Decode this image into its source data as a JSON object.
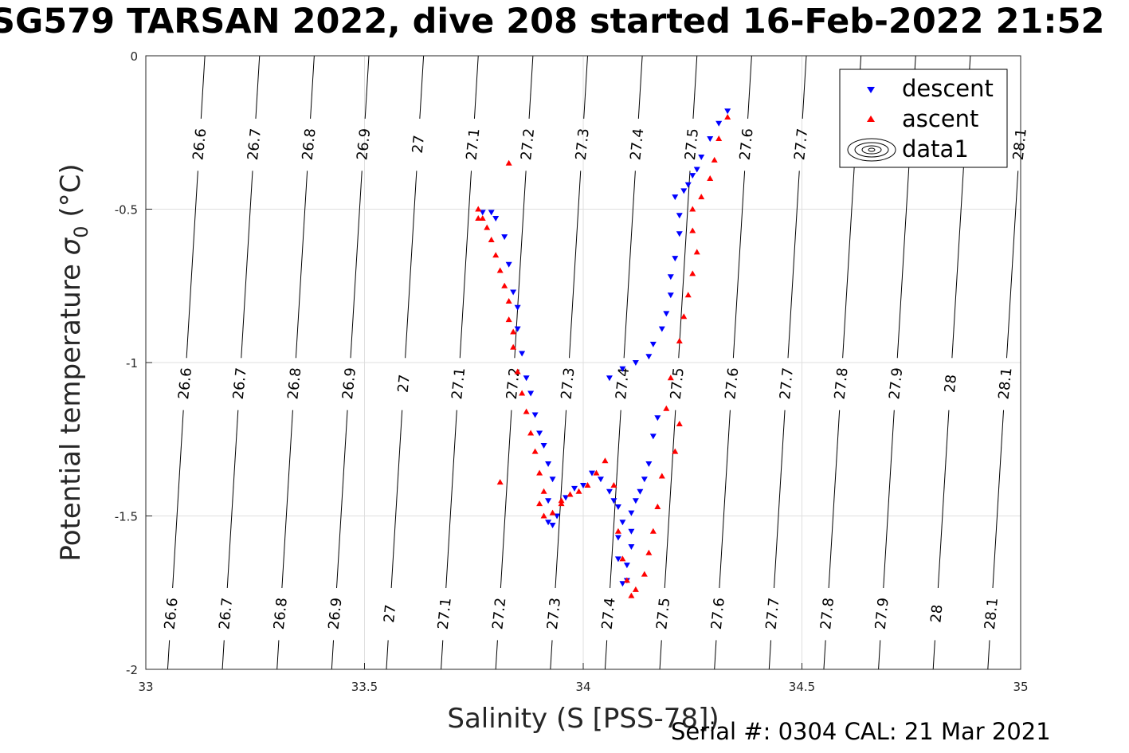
{
  "title": "SG579 TARSAN 2022, dive 208 started 16-Feb-2022 21:52",
  "footer": "Serial #: 0304  CAL: 21 Mar 2021",
  "chart_data": {
    "type": "scatter",
    "xlabel": "Salinity (S [PSS-78])",
    "ylabel_main": "Potential temperature ",
    "ylabel_sigma": "σ",
    "ylabel_sub": "0",
    "ylabel_unit": " (°C)",
    "xlim": [
      33,
      35
    ],
    "ylim": [
      -2,
      0
    ],
    "xticks": [
      "33",
      "33.5",
      "34",
      "34.5",
      "35"
    ],
    "yticks": [
      "0",
      "-0.5",
      "-1",
      "-1.5",
      "-2"
    ],
    "grid": true,
    "legend_position": "top-right",
    "legend": [
      "descent",
      "ascent",
      "data1"
    ],
    "colors": {
      "descent": "#0000ff",
      "ascent": "#ff0000",
      "contour": "#000000"
    },
    "density_contours": {
      "levels": [
        "26.6",
        "26.7",
        "26.8",
        "26.9",
        "27",
        "27.1",
        "27.2",
        "27.3",
        "27.4",
        "27.5",
        "27.6",
        "27.7",
        "27.8",
        "27.9",
        "28",
        "28.1"
      ],
      "s_at_top": [
        33.135,
        33.26,
        33.385,
        33.51,
        33.635,
        33.76,
        33.885,
        34.01,
        34.135,
        34.26,
        34.385,
        34.51,
        34.635,
        34.76,
        34.885,
        35.01
      ],
      "s_at_bottom": [
        33.05,
        33.175,
        33.3,
        33.425,
        33.55,
        33.675,
        33.8,
        33.925,
        34.05,
        34.175,
        34.3,
        34.425,
        34.55,
        34.675,
        34.8,
        34.925
      ],
      "label_rows": [
        {
          "y": -0.29,
          "levels": [
            "26.6",
            "26.7",
            "26.8",
            "26.9",
            "27",
            "27.1",
            "27.2",
            "27.3",
            "27.4",
            "27.5",
            "27.6",
            "27.7",
            "28.1"
          ]
        },
        {
          "y": -1.07,
          "levels": [
            "26.6",
            "26.7",
            "26.8",
            "26.9",
            "27",
            "27.1",
            "27.2",
            "27.3",
            "27.4",
            "27.5",
            "27.6",
            "27.7",
            "27.8",
            "27.9",
            "28",
            "28.1"
          ]
        },
        {
          "y": -1.82,
          "levels": [
            "26.6",
            "26.7",
            "26.8",
            "26.9",
            "27",
            "27.1",
            "27.2",
            "27.3",
            "27.4",
            "27.5",
            "27.6",
            "27.7",
            "27.8",
            "27.9",
            "28",
            "28.1"
          ]
        }
      ]
    },
    "series": [
      {
        "name": "descent",
        "marker": "triangle-down",
        "points": [
          [
            34.33,
            -0.18
          ],
          [
            34.31,
            -0.22
          ],
          [
            34.29,
            -0.27
          ],
          [
            34.27,
            -0.33
          ],
          [
            34.26,
            -0.37
          ],
          [
            34.25,
            -0.39
          ],
          [
            34.24,
            -0.42
          ],
          [
            34.23,
            -0.44
          ],
          [
            34.21,
            -0.46
          ],
          [
            34.22,
            -0.52
          ],
          [
            34.22,
            -0.58
          ],
          [
            34.21,
            -0.66
          ],
          [
            34.2,
            -0.72
          ],
          [
            34.2,
            -0.78
          ],
          [
            34.19,
            -0.84
          ],
          [
            34.18,
            -0.89
          ],
          [
            34.16,
            -0.94
          ],
          [
            34.15,
            -0.98
          ],
          [
            34.12,
            -1.0
          ],
          [
            34.09,
            -1.02
          ],
          [
            34.06,
            -1.05
          ],
          [
            34.17,
            -1.18
          ],
          [
            34.16,
            -1.24
          ],
          [
            34.15,
            -1.33
          ],
          [
            34.14,
            -1.38
          ],
          [
            34.13,
            -1.42
          ],
          [
            34.12,
            -1.45
          ],
          [
            34.11,
            -1.49
          ],
          [
            34.11,
            -1.55
          ],
          [
            34.11,
            -1.6
          ],
          [
            34.1,
            -1.66
          ],
          [
            34.1,
            -1.71
          ],
          [
            34.09,
            -1.72
          ],
          [
            34.08,
            -1.64
          ],
          [
            34.08,
            -1.57
          ],
          [
            34.09,
            -1.52
          ],
          [
            34.08,
            -1.47
          ],
          [
            34.07,
            -1.45
          ],
          [
            34.06,
            -1.42
          ],
          [
            34.04,
            -1.38
          ],
          [
            34.02,
            -1.36
          ],
          [
            34.0,
            -1.4
          ],
          [
            33.98,
            -1.41
          ],
          [
            33.96,
            -1.44
          ],
          [
            33.94,
            -1.5
          ],
          [
            33.93,
            -1.53
          ],
          [
            33.92,
            -1.52
          ],
          [
            33.92,
            -1.45
          ],
          [
            33.93,
            -1.38
          ],
          [
            33.92,
            -1.33
          ],
          [
            33.91,
            -1.27
          ],
          [
            33.9,
            -1.23
          ],
          [
            33.89,
            -1.17
          ],
          [
            33.88,
            -1.1
          ],
          [
            33.87,
            -1.05
          ],
          [
            33.86,
            -0.97
          ],
          [
            33.85,
            -0.89
          ],
          [
            33.85,
            -0.82
          ],
          [
            33.84,
            -0.77
          ],
          [
            33.83,
            -0.68
          ],
          [
            33.82,
            -0.59
          ],
          [
            33.8,
            -0.53
          ],
          [
            33.79,
            -0.51
          ],
          [
            33.77,
            -0.51
          ]
        ]
      },
      {
        "name": "ascent",
        "marker": "triangle-up",
        "points": [
          [
            33.76,
            -0.5
          ],
          [
            33.77,
            -0.53
          ],
          [
            33.78,
            -0.56
          ],
          [
            33.79,
            -0.6
          ],
          [
            33.8,
            -0.65
          ],
          [
            33.81,
            -0.7
          ],
          [
            33.82,
            -0.75
          ],
          [
            33.83,
            -0.8
          ],
          [
            33.83,
            -0.86
          ],
          [
            33.84,
            -0.9
          ],
          [
            33.84,
            -0.95
          ],
          [
            33.85,
            -1.03
          ],
          [
            33.86,
            -1.1
          ],
          [
            33.87,
            -1.16
          ],
          [
            33.88,
            -1.23
          ],
          [
            33.89,
            -1.29
          ],
          [
            33.9,
            -1.36
          ],
          [
            33.91,
            -1.42
          ],
          [
            33.9,
            -1.46
          ],
          [
            33.91,
            -1.5
          ],
          [
            33.93,
            -1.49
          ],
          [
            33.95,
            -1.45
          ],
          [
            33.97,
            -1.43
          ],
          [
            33.99,
            -1.42
          ],
          [
            34.01,
            -1.4
          ],
          [
            34.03,
            -1.36
          ],
          [
            34.05,
            -1.32
          ],
          [
            34.07,
            -1.4
          ],
          [
            34.08,
            -1.55
          ],
          [
            34.09,
            -1.64
          ],
          [
            34.1,
            -1.71
          ],
          [
            34.11,
            -1.76
          ],
          [
            34.12,
            -1.74
          ],
          [
            34.14,
            -1.69
          ],
          [
            34.15,
            -1.62
          ],
          [
            34.16,
            -1.55
          ],
          [
            34.17,
            -1.47
          ],
          [
            34.18,
            -1.37
          ],
          [
            34.21,
            -1.29
          ],
          [
            34.22,
            -1.2
          ],
          [
            34.19,
            -1.15
          ],
          [
            34.2,
            -1.05
          ],
          [
            34.22,
            -0.93
          ],
          [
            34.23,
            -0.85
          ],
          [
            34.24,
            -0.78
          ],
          [
            34.25,
            -0.71
          ],
          [
            34.26,
            -0.64
          ],
          [
            34.25,
            -0.57
          ],
          [
            34.25,
            -0.5
          ],
          [
            34.27,
            -0.46
          ],
          [
            34.29,
            -0.4
          ],
          [
            34.3,
            -0.34
          ],
          [
            34.31,
            -0.27
          ],
          [
            34.33,
            -0.2
          ],
          [
            33.83,
            -0.35
          ],
          [
            33.76,
            -0.53
          ],
          [
            33.95,
            -1.46
          ],
          [
            33.81,
            -1.39
          ]
        ]
      }
    ]
  }
}
